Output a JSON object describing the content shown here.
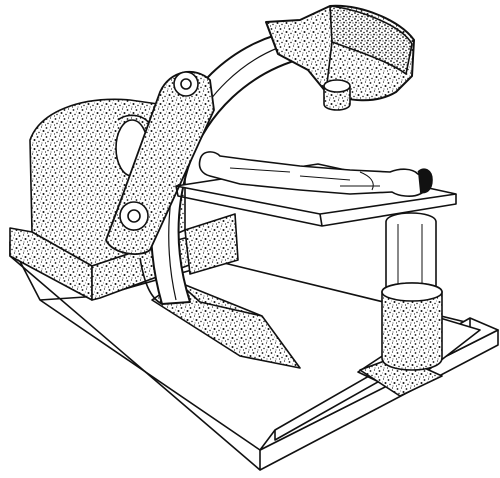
{
  "illustration": {
    "style": "black-and-white line art with stipple texture",
    "colors": {
      "ink": "#111111",
      "paper": "#ffffff",
      "stipple": "#222222"
    },
    "components": [
      "floor-platform",
      "machine-base-housing",
      "c-arm-gantry",
      "x-ray-head",
      "lens-cylinder",
      "patient-table",
      "pedestal-column",
      "floor-plate",
      "patient-figure"
    ]
  }
}
